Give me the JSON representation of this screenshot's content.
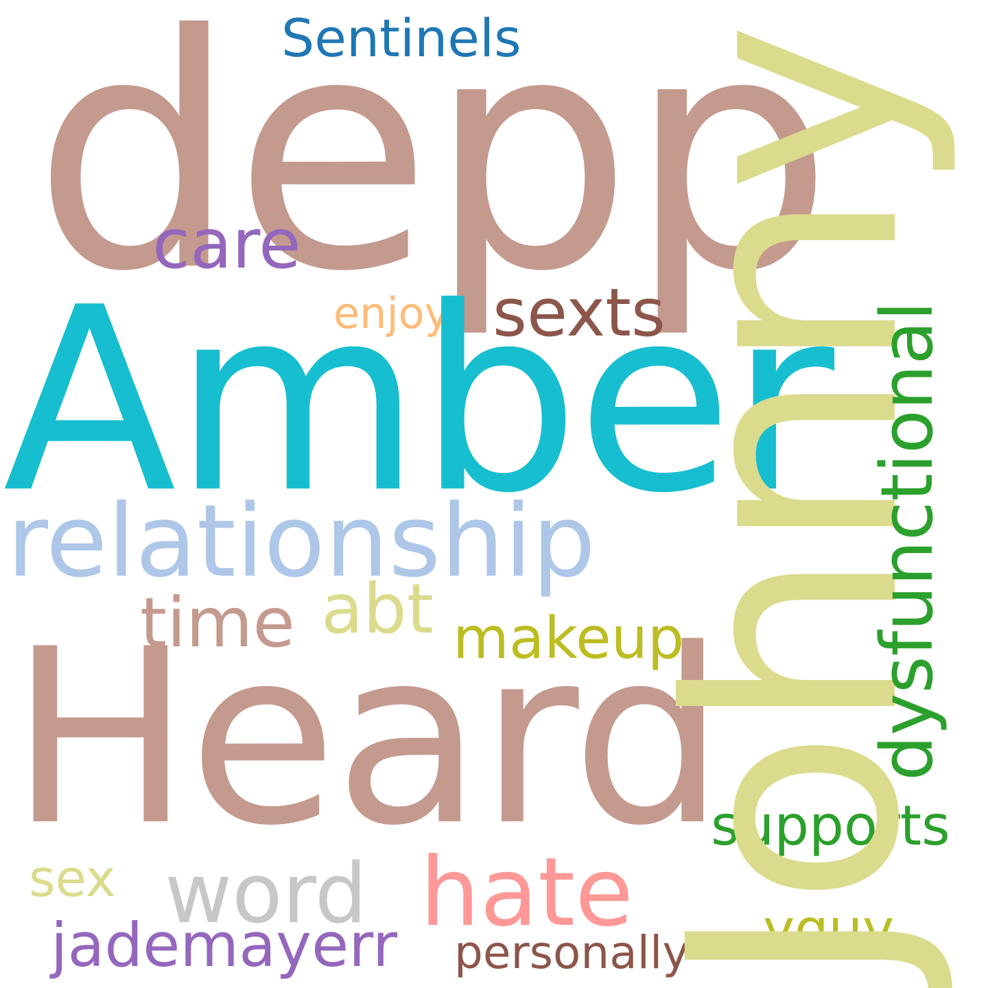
{
  "words": {
    "depp": {
      "text": "depp",
      "color": "#c49a8f"
    },
    "johnny": {
      "text": "Johnny",
      "color": "#dbdb8d"
    },
    "amber": {
      "text": "Amber",
      "color": "#17becf"
    },
    "heard": {
      "text": "Heard",
      "color": "#c49a8f"
    },
    "relationship": {
      "text": "relationship",
      "color": "#aec7e8"
    },
    "dysfunctional": {
      "text": "dysfunctional",
      "color": "#2ca02c"
    },
    "sentinels": {
      "text": "Sentinels",
      "color": "#1f77b4"
    },
    "care": {
      "text": "care",
      "color": "#9467bd"
    },
    "sexts": {
      "text": "sexts",
      "color": "#8c564b"
    },
    "enjoy": {
      "text": "enjoy",
      "color": "#ffbb78"
    },
    "time": {
      "text": "time",
      "color": "#c49a8f"
    },
    "abt": {
      "text": "abt",
      "color": "#dbdb8d"
    },
    "makeup": {
      "text": "makeup",
      "color": "#bcbd22"
    },
    "supports": {
      "text": "supports",
      "color": "#2ca02c"
    },
    "hate": {
      "text": "hate",
      "color": "#ff9896"
    },
    "word": {
      "text": "word",
      "color": "#c7c7c7"
    },
    "sex": {
      "text": "sex",
      "color": "#dbdb8d"
    },
    "jademayerr": {
      "text": "jademayerr",
      "color": "#9467bd"
    },
    "yguy": {
      "text": "yguy",
      "color": "#bcbd22"
    },
    "personally": {
      "text": "personally",
      "color": "#8c564b"
    }
  }
}
